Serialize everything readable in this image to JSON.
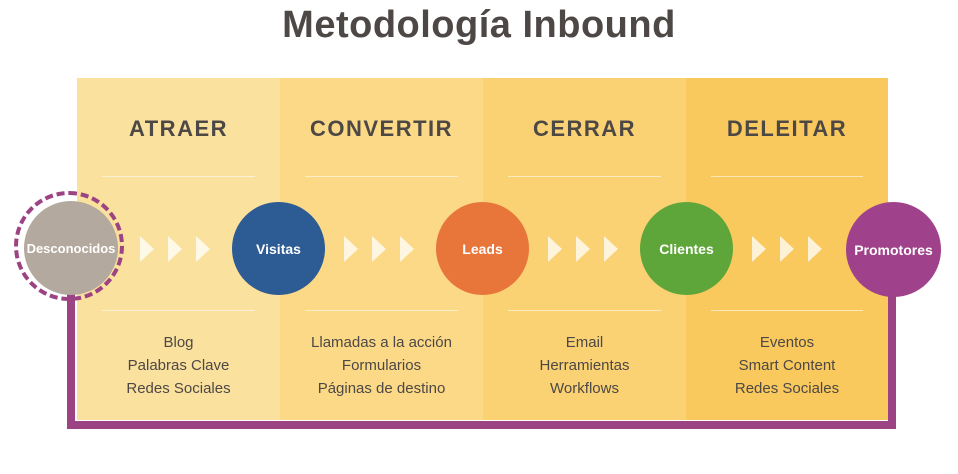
{
  "title": "Metodología Inbound",
  "phases": [
    {
      "label": "ATRAER",
      "tactics": [
        "Blog",
        "Palabras Clave",
        "Redes Sociales"
      ]
    },
    {
      "label": "CONVERTIR",
      "tactics": [
        "Llamadas a la acción",
        "Formularios",
        "Páginas de destino"
      ]
    },
    {
      "label": "CERRAR",
      "tactics": [
        "Email",
        "Herramientas",
        "Workflows"
      ]
    },
    {
      "label": "DELEITAR",
      "tactics": [
        "Eventos",
        "Smart Content",
        "Redes Sociales"
      ]
    }
  ],
  "stages": [
    "Desconocidos",
    "Visitas",
    "Leads",
    "Clientes",
    "Promotores"
  ],
  "colors": {
    "desconocidos": "#b3a99e",
    "visitas": "#2d5b93",
    "leads": "#e8763a",
    "clientes": "#5fa63a",
    "promotores": "#a0428b",
    "frame": "#9c4383",
    "text": "#4d4845"
  }
}
